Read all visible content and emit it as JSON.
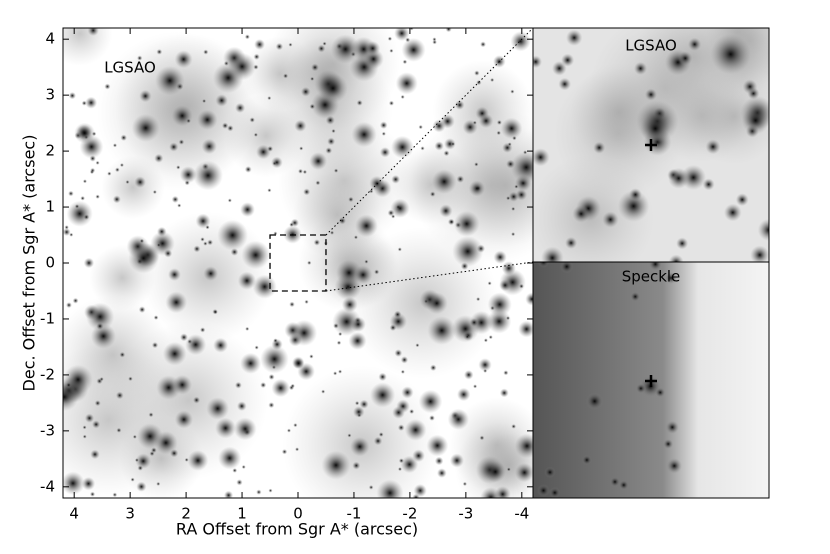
{
  "chart_data": {
    "type": "image",
    "xlabel": "RA Offset from Sgr A* (arcsec)",
    "ylabel": "Dec. Offset from Sgr A* (arcsec)",
    "xlim": [
      4.2,
      -4.2
    ],
    "ylim": [
      -4.2,
      4.2
    ],
    "xticks": [
      4,
      3,
      2,
      1,
      0,
      -1,
      -2,
      -3,
      -4
    ],
    "yticks": [
      -4,
      -3,
      -2,
      -1,
      0,
      1,
      2,
      3,
      4
    ],
    "annotations": {
      "main": "LGSAO",
      "inset_top": "LGSAO",
      "inset_bottom": "Speckle"
    },
    "zoom_box": {
      "xlim": [
        0.5,
        -0.5
      ],
      "ylim": [
        -0.5,
        0.5
      ]
    }
  }
}
